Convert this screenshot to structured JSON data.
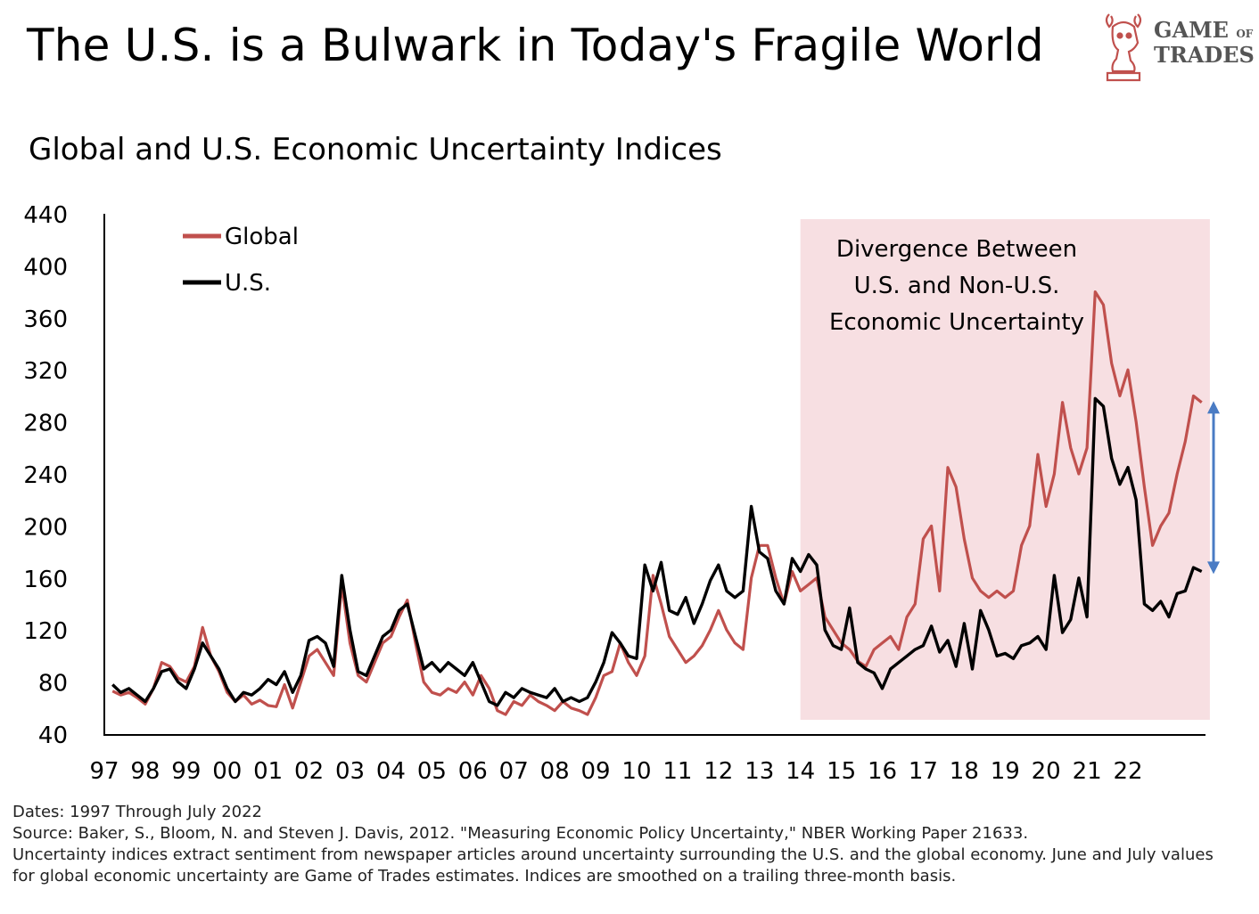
{
  "header": {
    "title": "The U.S. is a Bulwark in Today's Fragile World",
    "subtitle": "Global and U.S. Economic Uncertainty Indices",
    "logo_text": "GAME OF TRADES"
  },
  "footer": {
    "line1": "Dates: 1997 Through July 2022",
    "line2": "Source: Baker, S., Bloom, N. and Steven J. Davis, 2012. \"Measuring Economic Policy Uncertainty,\" NBER Working Paper 21633.",
    "line3": "Uncertainty indices extract sentiment from newspaper articles around uncertainty surrounding the U.S. and the global economy. June and July values",
    "line4": "for global economic uncertainty are Game of Trades estimates. Indices are smoothed on a trailing three-month basis."
  },
  "chart_data": {
    "type": "line",
    "xlim": [
      1997,
      2022.6
    ],
    "ylim": [
      40,
      440
    ],
    "yticks": [
      40,
      80,
      120,
      160,
      200,
      240,
      280,
      320,
      360,
      400,
      440
    ],
    "xtick_labels": [
      "97",
      "98",
      "99",
      "00",
      "01",
      "02",
      "03",
      "04",
      "05",
      "06",
      "07",
      "08",
      "09",
      "10",
      "11",
      "12",
      "13",
      "14",
      "15",
      "16",
      "17",
      "18",
      "19",
      "20",
      "21",
      "22"
    ],
    "legend": {
      "placement": "top-left"
    },
    "annotation": {
      "lines": [
        "Divergence Between",
        "U.S. and Non-U.S.",
        "Economic Uncertainty"
      ],
      "shaded_x_range": [
        2014.0,
        2022.8
      ],
      "shade_color": "#f7dfe2",
      "arrow_color": "#4a7cc4",
      "arrow_x": 2022.7,
      "arrow_y": [
        296,
        163
      ]
    },
    "series": [
      {
        "name": "Global",
        "color": "#c0504d",
        "points": [
          [
            1997.2,
            73
          ],
          [
            1997.4,
            70
          ],
          [
            1997.6,
            72
          ],
          [
            1997.8,
            68
          ],
          [
            1998.0,
            63
          ],
          [
            1998.2,
            75
          ],
          [
            1998.4,
            95
          ],
          [
            1998.6,
            92
          ],
          [
            1998.8,
            83
          ],
          [
            1999.0,
            80
          ],
          [
            1999.2,
            92
          ],
          [
            1999.4,
            122
          ],
          [
            1999.6,
            100
          ],
          [
            1999.8,
            88
          ],
          [
            2000.0,
            72
          ],
          [
            2000.2,
            65
          ],
          [
            2000.4,
            70
          ],
          [
            2000.6,
            63
          ],
          [
            2000.8,
            66
          ],
          [
            2001.0,
            62
          ],
          [
            2001.2,
            61
          ],
          [
            2001.4,
            78
          ],
          [
            2001.6,
            60
          ],
          [
            2001.8,
            80
          ],
          [
            2002.0,
            100
          ],
          [
            2002.2,
            105
          ],
          [
            2002.4,
            95
          ],
          [
            2002.6,
            85
          ],
          [
            2002.8,
            155
          ],
          [
            2003.0,
            110
          ],
          [
            2003.2,
            85
          ],
          [
            2003.4,
            80
          ],
          [
            2003.6,
            95
          ],
          [
            2003.8,
            110
          ],
          [
            2004.0,
            115
          ],
          [
            2004.2,
            130
          ],
          [
            2004.4,
            143
          ],
          [
            2004.6,
            110
          ],
          [
            2004.8,
            80
          ],
          [
            2005.0,
            72
          ],
          [
            2005.2,
            70
          ],
          [
            2005.4,
            75
          ],
          [
            2005.6,
            72
          ],
          [
            2005.8,
            80
          ],
          [
            2006.0,
            70
          ],
          [
            2006.2,
            85
          ],
          [
            2006.4,
            75
          ],
          [
            2006.6,
            58
          ],
          [
            2006.8,
            55
          ],
          [
            2007.0,
            65
          ],
          [
            2007.2,
            62
          ],
          [
            2007.4,
            70
          ],
          [
            2007.6,
            65
          ],
          [
            2007.8,
            62
          ],
          [
            2008.0,
            58
          ],
          [
            2008.2,
            65
          ],
          [
            2008.4,
            60
          ],
          [
            2008.6,
            58
          ],
          [
            2008.8,
            55
          ],
          [
            2009.0,
            68
          ],
          [
            2009.2,
            85
          ],
          [
            2009.4,
            88
          ],
          [
            2009.6,
            110
          ],
          [
            2009.8,
            95
          ],
          [
            2010.0,
            85
          ],
          [
            2010.2,
            100
          ],
          [
            2010.4,
            162
          ],
          [
            2010.6,
            140
          ],
          [
            2010.8,
            115
          ],
          [
            2011.0,
            105
          ],
          [
            2011.2,
            95
          ],
          [
            2011.4,
            100
          ],
          [
            2011.6,
            108
          ],
          [
            2011.8,
            120
          ],
          [
            2012.0,
            135
          ],
          [
            2012.2,
            120
          ],
          [
            2012.4,
            110
          ],
          [
            2012.6,
            105
          ],
          [
            2012.8,
            160
          ],
          [
            2013.0,
            185
          ],
          [
            2013.2,
            185
          ],
          [
            2013.4,
            160
          ],
          [
            2013.6,
            140
          ],
          [
            2013.8,
            165
          ],
          [
            2014.0,
            150
          ],
          [
            2014.2,
            155
          ],
          [
            2014.4,
            160
          ],
          [
            2014.6,
            130
          ],
          [
            2014.8,
            120
          ],
          [
            2015.0,
            110
          ],
          [
            2015.2,
            105
          ],
          [
            2015.4,
            96
          ],
          [
            2015.6,
            92
          ],
          [
            2015.8,
            105
          ],
          [
            2016.0,
            110
          ],
          [
            2016.2,
            115
          ],
          [
            2016.4,
            105
          ],
          [
            2016.6,
            130
          ],
          [
            2016.8,
            140
          ],
          [
            2017.0,
            190
          ],
          [
            2017.2,
            200
          ],
          [
            2017.4,
            150
          ],
          [
            2017.6,
            245
          ],
          [
            2017.8,
            230
          ],
          [
            2018.0,
            190
          ],
          [
            2018.2,
            160
          ],
          [
            2018.4,
            150
          ],
          [
            2018.6,
            145
          ],
          [
            2018.8,
            150
          ],
          [
            2019.0,
            145
          ],
          [
            2019.2,
            150
          ],
          [
            2019.4,
            185
          ],
          [
            2019.6,
            200
          ],
          [
            2019.8,
            255
          ],
          [
            2020.0,
            215
          ],
          [
            2020.2,
            240
          ],
          [
            2020.4,
            295
          ],
          [
            2020.6,
            260
          ],
          [
            2020.8,
            240
          ],
          [
            2021.0,
            260
          ],
          [
            2021.2,
            380
          ],
          [
            2021.4,
            370
          ],
          [
            2021.6,
            325
          ],
          [
            2021.8,
            300
          ],
          [
            2022.0,
            320
          ],
          [
            2022.2,
            280
          ],
          [
            2022.4,
            230
          ],
          [
            2022.6,
            185
          ],
          [
            2022.8,
            200
          ],
          [
            2023.0,
            210
          ],
          [
            2023.2,
            240
          ],
          [
            2023.4,
            265
          ],
          [
            2023.6,
            300
          ],
          [
            2023.8,
            295
          ]
        ]
      },
      {
        "name": "U.S.",
        "color": "#000000",
        "points": [
          [
            1997.2,
            78
          ],
          [
            1997.4,
            72
          ],
          [
            1997.6,
            75
          ],
          [
            1997.8,
            70
          ],
          [
            1998.0,
            65
          ],
          [
            1998.2,
            75
          ],
          [
            1998.4,
            88
          ],
          [
            1998.6,
            90
          ],
          [
            1998.8,
            80
          ],
          [
            1999.0,
            75
          ],
          [
            1999.2,
            90
          ],
          [
            1999.4,
            110
          ],
          [
            1999.6,
            100
          ],
          [
            1999.8,
            90
          ],
          [
            2000.0,
            75
          ],
          [
            2000.2,
            65
          ],
          [
            2000.4,
            72
          ],
          [
            2000.6,
            70
          ],
          [
            2000.8,
            75
          ],
          [
            2001.0,
            82
          ],
          [
            2001.2,
            78
          ],
          [
            2001.4,
            88
          ],
          [
            2001.6,
            72
          ],
          [
            2001.8,
            85
          ],
          [
            2002.0,
            112
          ],
          [
            2002.2,
            115
          ],
          [
            2002.4,
            110
          ],
          [
            2002.6,
            92
          ],
          [
            2002.8,
            162
          ],
          [
            2003.0,
            120
          ],
          [
            2003.2,
            88
          ],
          [
            2003.4,
            85
          ],
          [
            2003.6,
            100
          ],
          [
            2003.8,
            115
          ],
          [
            2004.0,
            120
          ],
          [
            2004.2,
            135
          ],
          [
            2004.4,
            140
          ],
          [
            2004.6,
            115
          ],
          [
            2004.8,
            90
          ],
          [
            2005.0,
            95
          ],
          [
            2005.2,
            88
          ],
          [
            2005.4,
            95
          ],
          [
            2005.6,
            90
          ],
          [
            2005.8,
            85
          ],
          [
            2006.0,
            95
          ],
          [
            2006.2,
            80
          ],
          [
            2006.4,
            65
          ],
          [
            2006.6,
            62
          ],
          [
            2006.8,
            72
          ],
          [
            2007.0,
            68
          ],
          [
            2007.2,
            75
          ],
          [
            2007.4,
            72
          ],
          [
            2007.6,
            70
          ],
          [
            2007.8,
            68
          ],
          [
            2008.0,
            75
          ],
          [
            2008.2,
            65
          ],
          [
            2008.4,
            68
          ],
          [
            2008.6,
            65
          ],
          [
            2008.8,
            68
          ],
          [
            2009.0,
            80
          ],
          [
            2009.2,
            95
          ],
          [
            2009.4,
            118
          ],
          [
            2009.6,
            110
          ],
          [
            2009.8,
            100
          ],
          [
            2010.0,
            98
          ],
          [
            2010.2,
            170
          ],
          [
            2010.4,
            150
          ],
          [
            2010.6,
            172
          ],
          [
            2010.8,
            135
          ],
          [
            2011.0,
            132
          ],
          [
            2011.2,
            145
          ],
          [
            2011.4,
            125
          ],
          [
            2011.6,
            140
          ],
          [
            2011.8,
            158
          ],
          [
            2012.0,
            170
          ],
          [
            2012.2,
            150
          ],
          [
            2012.4,
            145
          ],
          [
            2012.6,
            150
          ],
          [
            2012.8,
            215
          ],
          [
            2013.0,
            180
          ],
          [
            2013.2,
            175
          ],
          [
            2013.4,
            150
          ],
          [
            2013.6,
            140
          ],
          [
            2013.8,
            175
          ],
          [
            2014.0,
            165
          ],
          [
            2014.2,
            178
          ],
          [
            2014.4,
            170
          ],
          [
            2014.6,
            120
          ],
          [
            2014.8,
            108
          ],
          [
            2015.0,
            105
          ],
          [
            2015.2,
            137
          ],
          [
            2015.4,
            95
          ],
          [
            2015.6,
            90
          ],
          [
            2015.8,
            87
          ],
          [
            2016.0,
            75
          ],
          [
            2016.2,
            90
          ],
          [
            2016.4,
            95
          ],
          [
            2016.6,
            100
          ],
          [
            2016.8,
            105
          ],
          [
            2017.0,
            108
          ],
          [
            2017.2,
            123
          ],
          [
            2017.4,
            103
          ],
          [
            2017.6,
            112
          ],
          [
            2017.8,
            92
          ],
          [
            2018.0,
            125
          ],
          [
            2018.2,
            90
          ],
          [
            2018.4,
            135
          ],
          [
            2018.6,
            120
          ],
          [
            2018.8,
            100
          ],
          [
            2019.0,
            102
          ],
          [
            2019.2,
            98
          ],
          [
            2019.4,
            108
          ],
          [
            2019.6,
            110
          ],
          [
            2019.8,
            115
          ],
          [
            2020.0,
            105
          ],
          [
            2020.2,
            162
          ],
          [
            2020.4,
            118
          ],
          [
            2020.6,
            128
          ],
          [
            2020.8,
            160
          ],
          [
            2021.0,
            130
          ],
          [
            2021.2,
            298
          ],
          [
            2021.4,
            292
          ],
          [
            2021.6,
            252
          ],
          [
            2021.8,
            232
          ],
          [
            2022.0,
            245
          ],
          [
            2022.2,
            220
          ],
          [
            2022.4,
            140
          ],
          [
            2022.6,
            135
          ],
          [
            2022.8,
            142
          ],
          [
            2023.0,
            130
          ],
          [
            2023.2,
            148
          ],
          [
            2023.4,
            150
          ],
          [
            2023.6,
            168
          ],
          [
            2023.8,
            165
          ]
        ]
      }
    ]
  }
}
